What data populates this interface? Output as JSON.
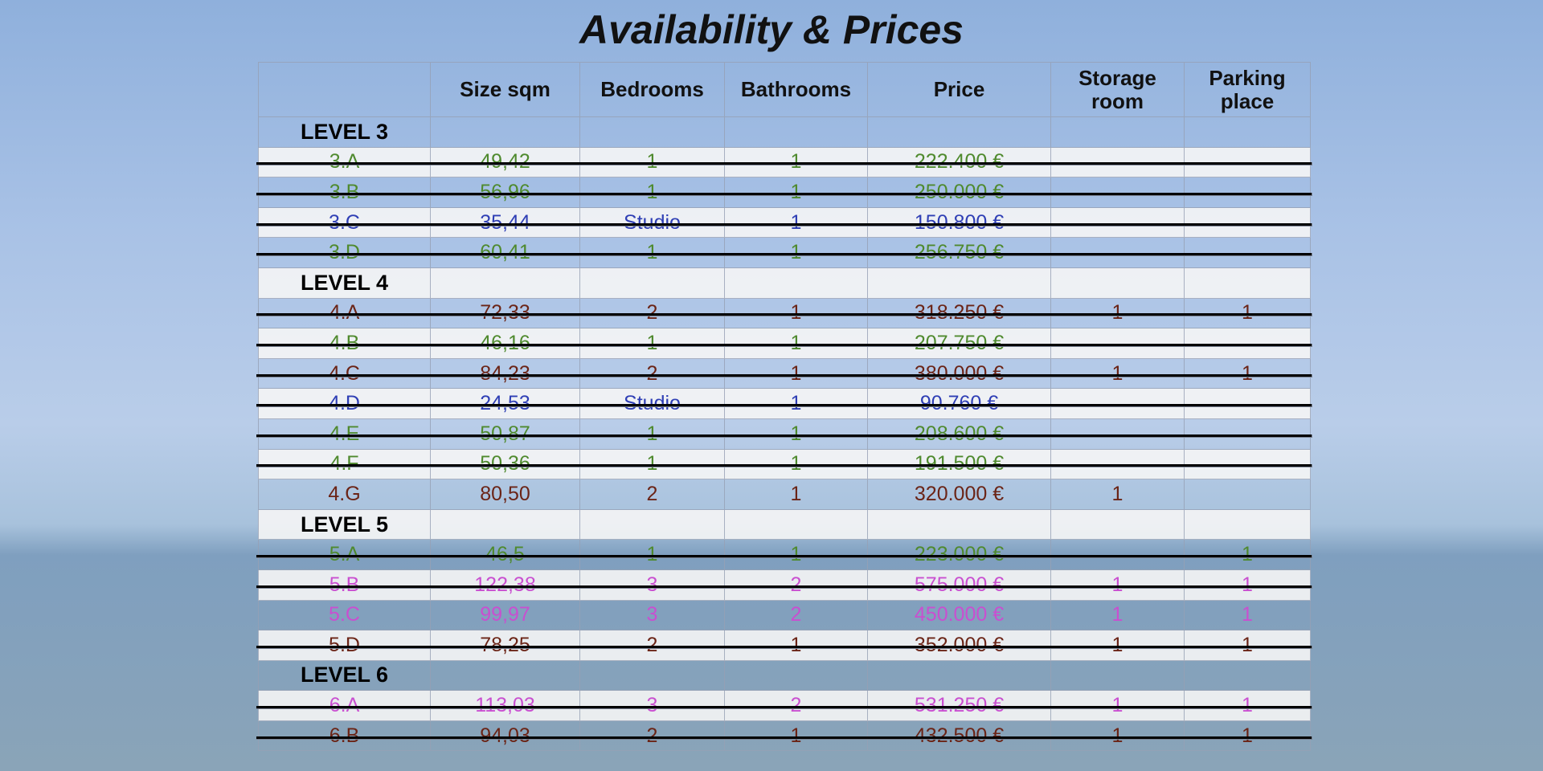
{
  "title": "Availability & Prices",
  "table": {
    "header": [
      null,
      "Size sqm",
      "Bedrooms",
      "Bathrooms",
      "Price",
      "Storage room",
      "Parking place"
    ],
    "rows": [
      {
        "cells": [
          "LEVEL 3",
          null,
          null,
          null,
          null,
          null,
          null
        ]
      },
      {
        "cells": [
          "3.A",
          "49,42",
          "1",
          "1",
          "222.400 €",
          null,
          null
        ],
        "color": "#4f8a2e",
        "struck": true
      },
      {
        "cells": [
          "3.B",
          "56,96",
          "1",
          "1",
          "250.000 €",
          null,
          null
        ],
        "color": "#4f8a2e",
        "struck": true
      },
      {
        "cells": [
          "3.C",
          "35,44",
          "Studio",
          "1",
          "150.800 €",
          null,
          null
        ],
        "color": "#2f3fb5",
        "struck": true
      },
      {
        "cells": [
          "3.D",
          "60,41",
          "1",
          "1",
          "256.750 €",
          null,
          null
        ],
        "color": "#4f8a2e",
        "struck": true
      },
      {
        "cells": [
          "LEVEL 4",
          null,
          null,
          null,
          null,
          null,
          null
        ]
      },
      {
        "cells": [
          "4.A",
          "72,33",
          "2",
          "1",
          "318.250 €",
          "1",
          "1"
        ],
        "color": "#6b2416",
        "struck": true
      },
      {
        "cells": [
          "4.B",
          "46,16",
          "1",
          "1",
          "207.750 €",
          null,
          null
        ],
        "color": "#4f8a2e",
        "struck": true
      },
      {
        "cells": [
          "4.C",
          "84,23",
          "2",
          "1",
          "380.000 €",
          "1",
          "1"
        ],
        "color": "#6b2416",
        "struck": true
      },
      {
        "cells": [
          "4.D",
          "24,53",
          "Studio",
          "1",
          "90.760 €",
          null,
          null
        ],
        "color": "#2f3fb5",
        "struck": true
      },
      {
        "cells": [
          "4.E",
          "50,87",
          "1",
          "1",
          "208.600 €",
          null,
          null
        ],
        "color": "#4f8a2e",
        "struck": true
      },
      {
        "cells": [
          "4.F",
          "50,36",
          "1",
          "1",
          "191.500 €",
          null,
          null
        ],
        "color": "#4f8a2e",
        "struck": true
      },
      {
        "cells": [
          "4.G",
          "80,50",
          "2",
          "1",
          "320.000 €",
          "1",
          null
        ],
        "color": "#6b2416",
        "struck": false
      },
      {
        "cells": [
          "LEVEL 5",
          null,
          null,
          null,
          null,
          null,
          null
        ]
      },
      {
        "cells": [
          "5.A",
          "46,5",
          "1",
          "1",
          "223.000 €",
          null,
          "1"
        ],
        "color": "#4f8a2e",
        "struck": true
      },
      {
        "cells": [
          "5.B",
          "122,38",
          "3",
          "2",
          "575.000 €",
          "1",
          "1"
        ],
        "color": "#c94fd0",
        "struck": true
      },
      {
        "cells": [
          "5.C",
          "99,97",
          "3",
          "2",
          "450.000 €",
          "1",
          "1"
        ],
        "color": "#c94fd0",
        "struck": false
      },
      {
        "cells": [
          "5.D",
          "78,25",
          "2",
          "1",
          "352.000 €",
          "1",
          "1"
        ],
        "color": "#6b2416",
        "struck": true
      },
      {
        "cells": [
          "LEVEL 6",
          null,
          null,
          null,
          null,
          null,
          null
        ]
      },
      {
        "cells": [
          "6.A",
          "113,03",
          "3",
          "2",
          "531.250 €",
          "1",
          "1"
        ],
        "color": "#c94fd0",
        "struck": true
      },
      {
        "cells": [
          "6.B",
          "94,03",
          "2",
          "1",
          "432.500 €",
          "1",
          "1"
        ],
        "color": "#6b2416",
        "struck": true
      }
    ]
  }
}
